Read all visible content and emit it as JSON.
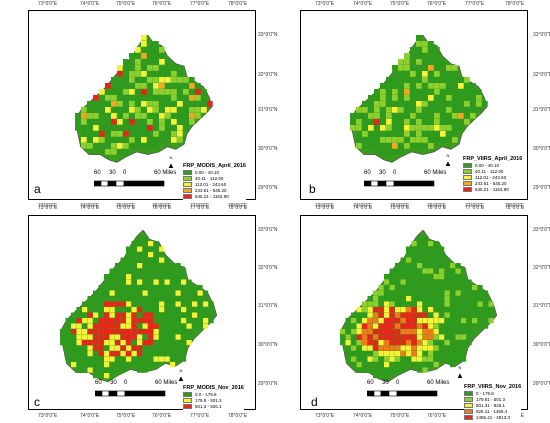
{
  "lat_labels": [
    "33°0'0\"N",
    "32°0'0\"N",
    "31°0'0\"N",
    "30°0'0\"N",
    "29°0'0\"N"
  ],
  "lon_labels": [
    "73°0'0\"E",
    "74°0'0\"E",
    "75°0'0\"E",
    "76°0'0\"E",
    "77°0'0\"E",
    "78°0'0\"E"
  ],
  "scale": {
    "values": [
      "60",
      "30",
      "0",
      "60 Miles"
    ]
  },
  "north_symbol": "N",
  "colors": {
    "land_base": "#3a9b1d",
    "c0": "#2e9a1e",
    "c1": "#8dcf2e",
    "c2": "#f6f23a",
    "c3": "#f5a623",
    "c4": "#f07b1a",
    "c5": "#e8251b"
  },
  "panels": [
    {
      "letter": "a",
      "legend": {
        "title": "FRP_MODIS_April_2016",
        "items": [
          {
            "label": "0.00 - 40.10",
            "color": "#2e9a1e"
          },
          {
            "label": "40.11 - 112.00",
            "color": "#8dcf2e"
          },
          {
            "label": "112.01 - 243.60",
            "color": "#f6f23a"
          },
          {
            "label": "243.61 - 545.20",
            "color": "#f5a623"
          },
          {
            "label": "545.21 - 1153.90",
            "color": "#e8251b"
          }
        ]
      }
    },
    {
      "letter": "b",
      "legend": {
        "title": "FRP_VIIRS_April_2016",
        "items": [
          {
            "label": "0.00 - 40.10",
            "color": "#2e9a1e"
          },
          {
            "label": "40.11 - 112.00",
            "color": "#8dcf2e"
          },
          {
            "label": "112.01 - 243.60",
            "color": "#f6f23a"
          },
          {
            "label": "243.61 - 545.20",
            "color": "#f5a623"
          },
          {
            "label": "545.21 - 1153.90",
            "color": "#e8251b"
          }
        ]
      }
    },
    {
      "letter": "c",
      "legend": {
        "title": "FRP_MODIS_Nov_2016",
        "items": [
          {
            "label": "0.0 - 179.8",
            "color": "#2e9a1e"
          },
          {
            "label": "179.8 - 501.3",
            "color": "#f6f23a"
          },
          {
            "label": "501.3 - 926.1",
            "color": "#e8251b"
          }
        ]
      }
    },
    {
      "letter": "d",
      "legend": {
        "title": "FRP_VIIRS_Nov_2016",
        "items": [
          {
            "label": "0 - 179.8",
            "color": "#2e9a1e"
          },
          {
            "label": "179.81 - 501.3",
            "color": "#8dcf2e"
          },
          {
            "label": "501.31 - 926.1",
            "color": "#f6f23a"
          },
          {
            "label": "926.11 - 1455.4",
            "color": "#f07b1a"
          },
          {
            "label": "1455.41 - 2813.3",
            "color": "#e8251b"
          }
        ]
      }
    }
  ]
}
